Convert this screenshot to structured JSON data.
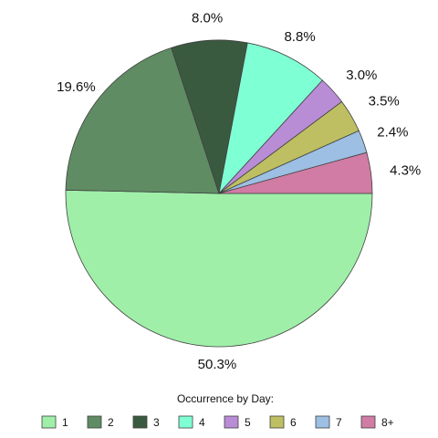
{
  "chart_data": {
    "type": "pie",
    "legend_title": "Occurrence by Day:",
    "legend_position": "bottom",
    "slices": [
      {
        "label": "1",
        "value": 50.3,
        "display": "50.3%",
        "color": "#9fefa9"
      },
      {
        "label": "2",
        "value": 19.6,
        "display": "19.6%",
        "color": "#5f8c63"
      },
      {
        "label": "3",
        "value": 8.0,
        "display": "8.0%",
        "color": "#3a5a3f"
      },
      {
        "label": "4",
        "value": 8.8,
        "display": "8.8%",
        "color": "#7fffd4"
      },
      {
        "label": "5",
        "value": 3.0,
        "display": "3.0%",
        "color": "#b98cd6"
      },
      {
        "label": "6",
        "value": 3.5,
        "display": "3.5%",
        "color": "#bdbf62"
      },
      {
        "label": "7",
        "value": 2.4,
        "display": "2.4%",
        "color": "#9cbfe3"
      },
      {
        "label": "8+",
        "value": 4.3,
        "display": "4.3%",
        "color": "#d07ca4"
      }
    ]
  }
}
